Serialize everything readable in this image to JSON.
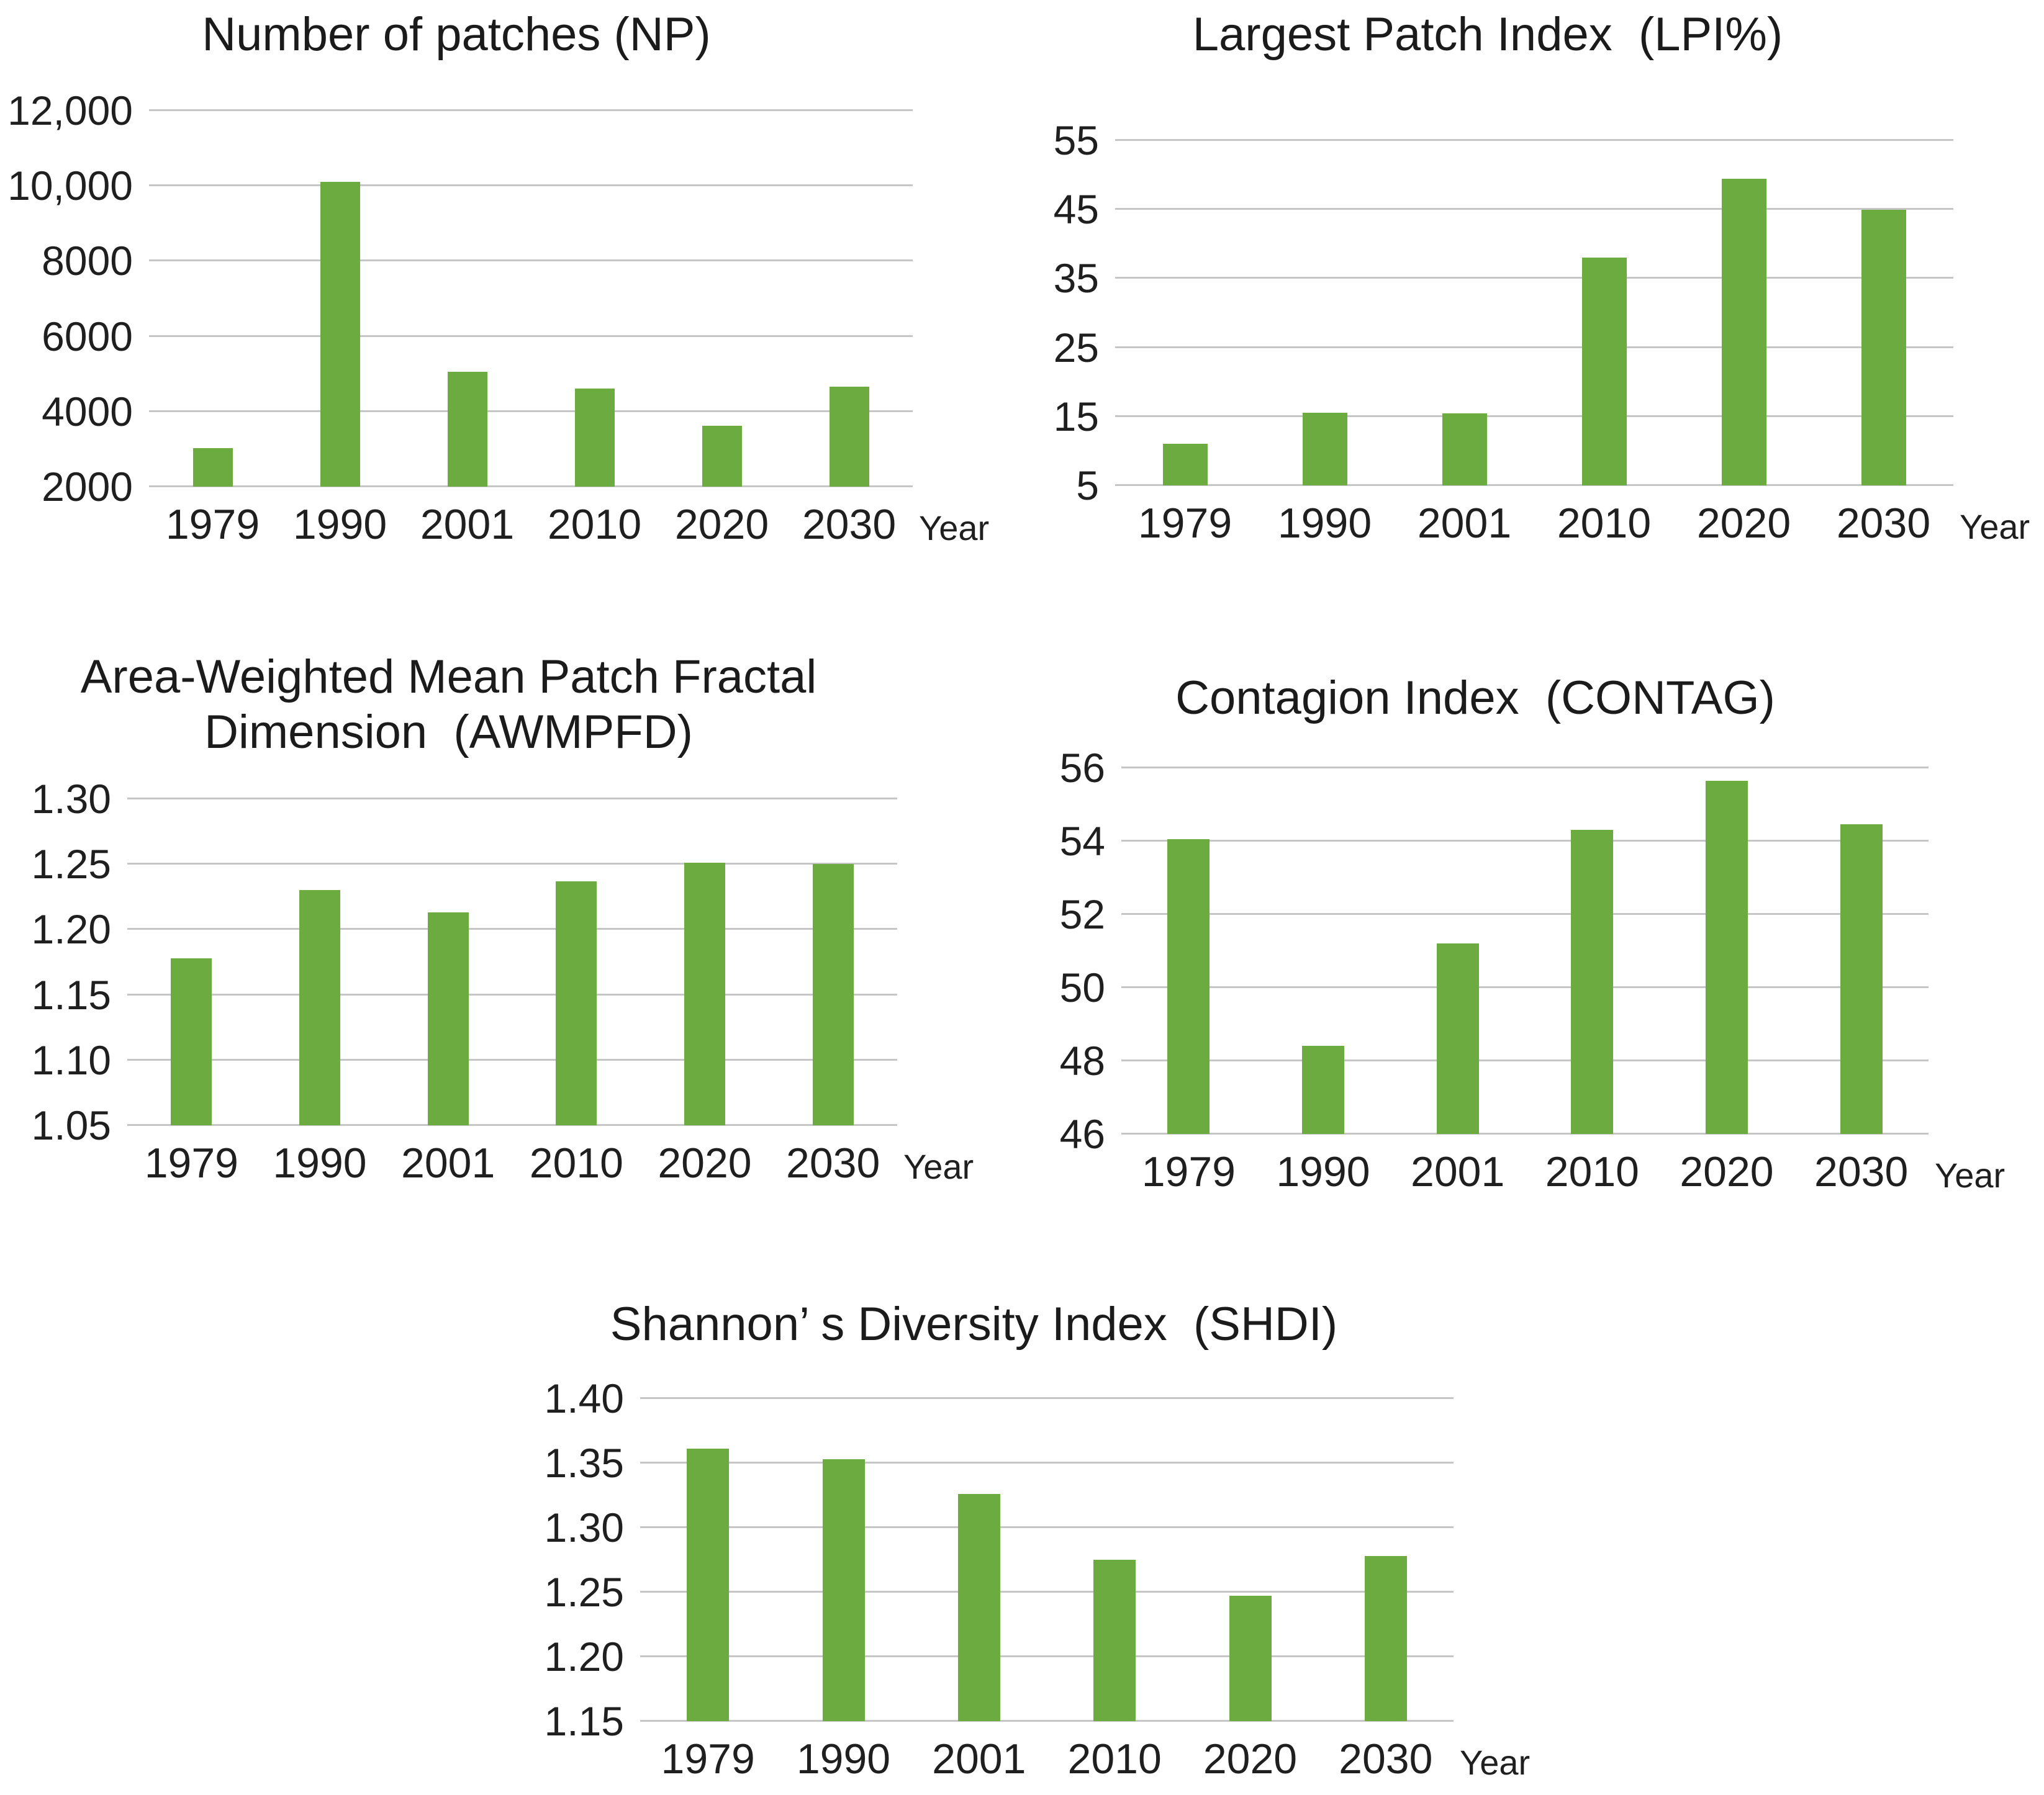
{
  "figure": {
    "background": "#ffffff",
    "description_labels": {
      "x_axis_title": "Year"
    }
  },
  "colors": {
    "bar": "#6cab40",
    "gridline": "#c6c6c6",
    "title_text": "#1b1b1b",
    "tick_text": "#1f1f1f"
  },
  "chart_data": [
    {
      "type": "bar",
      "title": "Number of patches (NP)",
      "categories": [
        "1979",
        "1990",
        "2001",
        "2010",
        "2020",
        "2030"
      ],
      "values": [
        3020,
        10100,
        5060,
        4600,
        3620,
        4660
      ],
      "xlabel": "Year",
      "ylabel": "",
      "ylim": [
        2000,
        12000
      ],
      "y_tick_values": [
        2000,
        4000,
        6000,
        8000,
        10000,
        12000
      ],
      "y_tick_labels": [
        "2000",
        "4000",
        "6000",
        "8000",
        "10,000",
        "12,000"
      ],
      "grid": true,
      "legend": false,
      "bar_color": "#6cab40"
    },
    {
      "type": "bar",
      "title": "Largest Patch Index  (LPI%)",
      "categories": [
        "1979",
        "1990",
        "2001",
        "2010",
        "2020",
        "2030"
      ],
      "values": [
        11,
        15.5,
        15.4,
        38,
        49.4,
        44.9
      ],
      "xlabel": "Year",
      "ylabel": "",
      "ylim": [
        5,
        55
      ],
      "y_tick_values": [
        5,
        15,
        25,
        35,
        45,
        55
      ],
      "y_tick_labels": [
        "5",
        "15",
        "25",
        "35",
        "45",
        "55"
      ],
      "grid": true,
      "legend": false,
      "bar_color": "#6cab40"
    },
    {
      "type": "bar",
      "title": "Area-Weighted Mean Patch Fractal\nDimension  (AWMPFD)",
      "categories": [
        "1979",
        "1990",
        "2001",
        "2010",
        "2020",
        "2030"
      ],
      "values": [
        1.178,
        1.23,
        1.213,
        1.237,
        1.251,
        1.25
      ],
      "xlabel": "Year",
      "ylabel": "",
      "ylim": [
        1.05,
        1.3
      ],
      "y_tick_values": [
        1.05,
        1.1,
        1.15,
        1.2,
        1.25,
        1.3
      ],
      "y_tick_labels": [
        "1.05",
        "1.10",
        "1.15",
        "1.20",
        "1.25",
        "1.30"
      ],
      "grid": true,
      "legend": false,
      "bar_color": "#6cab40"
    },
    {
      "type": "bar",
      "title": "Contagion Index  (CONTAG)",
      "categories": [
        "1979",
        "1990",
        "2001",
        "2010",
        "2020",
        "2030"
      ],
      "values": [
        54.05,
        48.4,
        51.2,
        54.3,
        55.65,
        54.45
      ],
      "xlabel": "Year",
      "ylabel": "",
      "ylim": [
        46,
        56
      ],
      "y_tick_values": [
        46,
        48,
        50,
        52,
        54,
        56
      ],
      "y_tick_labels": [
        "46",
        "48",
        "50",
        "52",
        "54",
        "56"
      ],
      "grid": true,
      "legend": false,
      "bar_color": "#6cab40"
    },
    {
      "type": "bar",
      "title": "Shannon’ s Diversity Index  (SHDI)",
      "categories": [
        "1979",
        "1990",
        "2001",
        "2010",
        "2020",
        "2030"
      ],
      "values": [
        1.361,
        1.353,
        1.326,
        1.275,
        1.247,
        1.278
      ],
      "xlabel": "Year",
      "ylabel": "",
      "ylim": [
        1.15,
        1.4
      ],
      "y_tick_values": [
        1.15,
        1.2,
        1.25,
        1.3,
        1.35,
        1.4
      ],
      "y_tick_labels": [
        "1.15",
        "1.20",
        "1.25",
        "1.30",
        "1.35",
        "1.40"
      ],
      "grid": true,
      "legend": false,
      "bar_color": "#6cab40"
    }
  ]
}
